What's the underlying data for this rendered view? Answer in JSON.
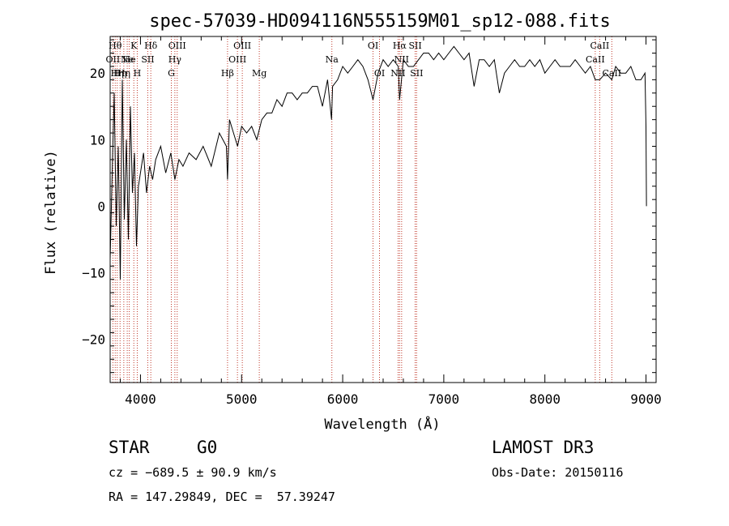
{
  "chart_data": {
    "type": "line",
    "title": "spec-57039-HD094116N555159M01_sp12-088.fits",
    "xlabel": "Wavelength (Å)",
    "ylabel": "Flux (relative)",
    "xlim": [
      3700,
      9100
    ],
    "ylim": [
      -26.5,
      25.5
    ],
    "xticks": [
      4000,
      5000,
      6000,
      7000,
      8000,
      9000
    ],
    "yticks": [
      -20,
      -10,
      0,
      10,
      20
    ],
    "series": [
      {
        "name": "spectrum",
        "x": [
          3700,
          3720,
          3740,
          3760,
          3780,
          3800,
          3820,
          3840,
          3860,
          3880,
          3900,
          3920,
          3940,
          3960,
          3980,
          4000,
          4030,
          4060,
          4090,
          4120,
          4150,
          4200,
          4250,
          4300,
          4340,
          4380,
          4420,
          4480,
          4550,
          4620,
          4700,
          4780,
          4850,
          4861,
          4880,
          4920,
          4960,
          5000,
          5050,
          5100,
          5150,
          5200,
          5250,
          5300,
          5350,
          5400,
          5450,
          5500,
          5550,
          5600,
          5650,
          5700,
          5750,
          5800,
          5850,
          5890,
          5900,
          5950,
          6000,
          6050,
          6100,
          6150,
          6200,
          6250,
          6300,
          6350,
          6400,
          6450,
          6500,
          6550,
          6563,
          6600,
          6650,
          6700,
          6750,
          6800,
          6850,
          6900,
          6950,
          7000,
          7050,
          7100,
          7150,
          7200,
          7250,
          7300,
          7350,
          7400,
          7450,
          7500,
          7550,
          7600,
          7650,
          7700,
          7750,
          7800,
          7850,
          7900,
          7950,
          8000,
          8050,
          8100,
          8150,
          8200,
          8250,
          8300,
          8350,
          8400,
          8450,
          8498,
          8542,
          8600,
          8662,
          8700,
          8750,
          8800,
          8850,
          8900,
          8950,
          8990,
          9000,
          9005
        ],
        "values": [
          -8,
          5,
          17,
          -3,
          9,
          -11,
          19,
          -2,
          10,
          -5,
          15,
          2,
          8,
          -6,
          3,
          5,
          8,
          2,
          6,
          4,
          7,
          9,
          5,
          8,
          4,
          7,
          6,
          8,
          7,
          9,
          6,
          11,
          9,
          4,
          13,
          11,
          9,
          12,
          11,
          12,
          10,
          13,
          14,
          14,
          16,
          15,
          17,
          17,
          16,
          17,
          17,
          18,
          18,
          15,
          19,
          13,
          18,
          19,
          21,
          20,
          21,
          22,
          21,
          19,
          16,
          20,
          22,
          21,
          22,
          21,
          16,
          22,
          21,
          21,
          22,
          23,
          23,
          22,
          23,
          22,
          23,
          24,
          23,
          22,
          23,
          18,
          22,
          22,
          21,
          22,
          17,
          20,
          21,
          22,
          21,
          21,
          22,
          21,
          22,
          20,
          21,
          22,
          21,
          21,
          21,
          22,
          21,
          20,
          21,
          19,
          19,
          20,
          19,
          21,
          20,
          20,
          21,
          19,
          19,
          20,
          12,
          0
        ]
      }
    ],
    "lines": [
      {
        "x": 3727,
        "label": "OII",
        "row": 1
      },
      {
        "x": 3750,
        "label": "Hθ",
        "row": 0
      },
      {
        "x": 3770,
        "label": "Hη",
        "row": 2
      },
      {
        "x": 3798,
        "label": "Hη",
        "row": 2
      },
      {
        "x": 3835,
        "label": "Hη",
        "row": 2
      },
      {
        "x": 3869,
        "label": "Ne",
        "row": 1
      },
      {
        "x": 3889,
        "label": "He",
        "row": 1
      },
      {
        "x": 3934,
        "label": "K",
        "row": 0
      },
      {
        "x": 3968,
        "label": "H",
        "row": 2
      },
      {
        "x": 4072,
        "label": "SII",
        "row": 1
      },
      {
        "x": 4102,
        "label": "Hδ",
        "row": 0
      },
      {
        "x": 4305,
        "label": "G",
        "row": 2
      },
      {
        "x": 4340,
        "label": "Hγ",
        "row": 1
      },
      {
        "x": 4363,
        "label": "OIII",
        "row": 0
      },
      {
        "x": 4861,
        "label": "Hβ",
        "row": 2
      },
      {
        "x": 4959,
        "label": "OIII",
        "row": 1
      },
      {
        "x": 5007,
        "label": "OIII",
        "row": 0
      },
      {
        "x": 5175,
        "label": "Mg",
        "row": 2
      },
      {
        "x": 5893,
        "label": "Na",
        "row": 1
      },
      {
        "x": 6300,
        "label": "OI",
        "row": 0
      },
      {
        "x": 6364,
        "label": "OI",
        "row": 2
      },
      {
        "x": 6548,
        "label": "NII",
        "row": 2
      },
      {
        "x": 6563,
        "label": "Hα",
        "row": 0
      },
      {
        "x": 6583,
        "label": "NII",
        "row": 1
      },
      {
        "x": 6717,
        "label": "SII",
        "row": 0
      },
      {
        "x": 6731,
        "label": "SII",
        "row": 2
      },
      {
        "x": 8498,
        "label": "CaII",
        "row": 1
      },
      {
        "x": 8542,
        "label": "CaII",
        "row": 0
      },
      {
        "x": 8662,
        "label": "CaII",
        "row": 2
      }
    ]
  },
  "info": {
    "class": "STAR",
    "subclass": "G0",
    "survey": "LAMOST DR3",
    "cz": "cz = −689.5 ± 90.9 km/s",
    "obs_date": "Obs-Date: 20150116",
    "coords": "RA = 147.29849, DEC =  57.39247"
  }
}
